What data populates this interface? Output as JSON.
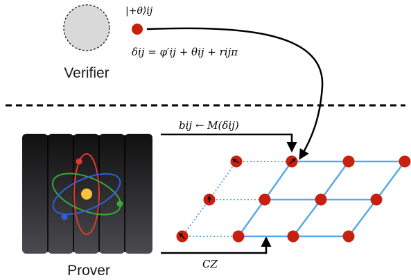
{
  "verifier": {
    "label": "Verifier",
    "state_label": "|+θ⟩ij",
    "delta_formula": "δij = φ′ij + θij + rijπ"
  },
  "prover": {
    "label": "Prover"
  },
  "arrows": {
    "measurement_label": "bij ← M(δij)",
    "entangle_label": "CZ"
  },
  "colors": {
    "qubit": "#c8200e",
    "lattice": "#5aa9e6",
    "verifier_fill": "#d9d9d9",
    "cabinet_top": "#101010",
    "cabinet_bottom": "#4a4a4f",
    "orbit_red": "#e03a2e",
    "orbit_green": "#3aa83a",
    "orbit_blue": "#2f5fd6",
    "nucleus": "#f7c33c"
  },
  "icons": {
    "verifier": "dashed-circle-icon",
    "prover": "quantum-computer-icon",
    "atom": "atom-icon"
  }
}
